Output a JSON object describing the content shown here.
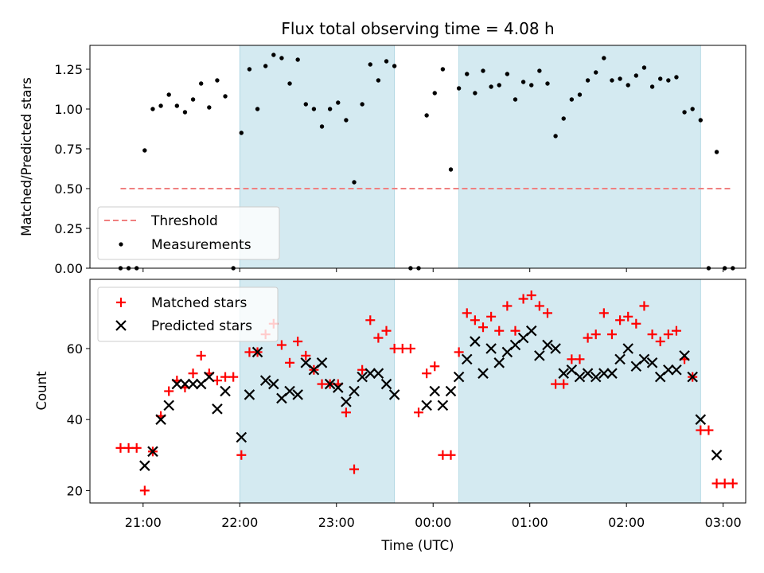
{
  "chart_data": [
    {
      "type": "scatter",
      "title": "Flux total observing time = 4.08 h",
      "ylabel": "Matched/Predicted stars",
      "xlabel": "",
      "xlim": [
        "20:27",
        "03:14"
      ],
      "ylim": [
        0,
        1.4
      ],
      "yticks": [
        "0.00",
        "0.25",
        "0.50",
        "0.75",
        "1.00",
        "1.25"
      ],
      "ytick_values": [
        0,
        0.25,
        0.5,
        0.75,
        1.0,
        1.25
      ],
      "xtick_values": [
        "21:00",
        "22:00",
        "23:00",
        "00:00",
        "01:00",
        "02:00",
        "03:00"
      ],
      "grid": false,
      "legend_placement": "lower-left",
      "shaded_intervals": [
        [
          "22:00",
          "23:36"
        ],
        [
          "00:16",
          "02:46"
        ]
      ],
      "threshold": {
        "name": "Threshold",
        "value": 0.5,
        "x_range": [
          "20:46",
          "03:06"
        ],
        "color": "#f08080"
      },
      "series": [
        {
          "name": "Measurements",
          "color": "#000000",
          "marker": "dot",
          "points": [
            [
              "20:46",
              0.0
            ],
            [
              "20:51",
              0.0
            ],
            [
              "20:56",
              0.0
            ],
            [
              "21:01",
              0.74
            ],
            [
              "21:06",
              1.0
            ],
            [
              "21:11",
              1.02
            ],
            [
              "21:16",
              1.09
            ],
            [
              "21:21",
              1.02
            ],
            [
              "21:26",
              0.98
            ],
            [
              "21:31",
              1.06
            ],
            [
              "21:36",
              1.16
            ],
            [
              "21:41",
              1.01
            ],
            [
              "21:46",
              1.18
            ],
            [
              "21:51",
              1.08
            ],
            [
              "21:56",
              0.0
            ],
            [
              "22:01",
              0.85
            ],
            [
              "22:06",
              1.25
            ],
            [
              "22:11",
              1.0
            ],
            [
              "22:16",
              1.27
            ],
            [
              "22:21",
              1.34
            ],
            [
              "22:26",
              1.32
            ],
            [
              "22:31",
              1.16
            ],
            [
              "22:36",
              1.31
            ],
            [
              "22:41",
              1.03
            ],
            [
              "22:46",
              1.0
            ],
            [
              "22:51",
              0.89
            ],
            [
              "22:56",
              1.0
            ],
            [
              "23:01",
              1.04
            ],
            [
              "23:06",
              0.93
            ],
            [
              "23:11",
              0.54
            ],
            [
              "23:16",
              1.03
            ],
            [
              "23:21",
              1.28
            ],
            [
              "23:26",
              1.18
            ],
            [
              "23:31",
              1.3
            ],
            [
              "23:36",
              1.27
            ],
            [
              "23:46",
              0.0
            ],
            [
              "23:51",
              0.0
            ],
            [
              "23:56",
              0.96
            ],
            [
              "00:01",
              1.1
            ],
            [
              "00:06",
              1.25
            ],
            [
              "00:11",
              0.62
            ],
            [
              "00:16",
              1.13
            ],
            [
              "00:21",
              1.22
            ],
            [
              "00:26",
              1.1
            ],
            [
              "00:31",
              1.24
            ],
            [
              "00:36",
              1.14
            ],
            [
              "00:41",
              1.15
            ],
            [
              "00:46",
              1.22
            ],
            [
              "00:51",
              1.06
            ],
            [
              "00:56",
              1.17
            ],
            [
              "01:01",
              1.15
            ],
            [
              "01:06",
              1.24
            ],
            [
              "01:11",
              1.16
            ],
            [
              "01:16",
              0.83
            ],
            [
              "01:21",
              0.94
            ],
            [
              "01:26",
              1.06
            ],
            [
              "01:31",
              1.09
            ],
            [
              "01:36",
              1.18
            ],
            [
              "01:41",
              1.23
            ],
            [
              "01:46",
              1.32
            ],
            [
              "01:51",
              1.18
            ],
            [
              "01:56",
              1.19
            ],
            [
              "02:01",
              1.15
            ],
            [
              "02:06",
              1.21
            ],
            [
              "02:11",
              1.26
            ],
            [
              "02:16",
              1.14
            ],
            [
              "02:21",
              1.19
            ],
            [
              "02:26",
              1.18
            ],
            [
              "02:31",
              1.2
            ],
            [
              "02:36",
              0.98
            ],
            [
              "02:41",
              1.0
            ],
            [
              "02:46",
              0.93
            ],
            [
              "02:51",
              0.0
            ],
            [
              "02:56",
              0.73
            ],
            [
              "03:01",
              0.0
            ],
            [
              "03:06",
              0.0
            ]
          ]
        }
      ]
    },
    {
      "type": "scatter",
      "title": "",
      "xlabel": "Time (UTC)",
      "ylabel": "Count",
      "xlim": [
        "20:27",
        "03:14"
      ],
      "ylim": [
        16.5,
        79.5
      ],
      "yticks": [
        "20",
        "40",
        "60"
      ],
      "ytick_values": [
        20,
        40,
        60
      ],
      "xticks": [
        "21:00",
        "22:00",
        "23:00",
        "00:00",
        "01:00",
        "02:00",
        "03:00"
      ],
      "xtick_values": [
        "21:00",
        "22:00",
        "23:00",
        "00:00",
        "01:00",
        "02:00",
        "03:00"
      ],
      "grid": false,
      "legend_placement": "upper-left",
      "shaded_intervals": [
        [
          "22:00",
          "23:36"
        ],
        [
          "00:16",
          "02:46"
        ]
      ],
      "series": [
        {
          "name": "Matched stars",
          "color": "#ff0000",
          "marker": "plus",
          "points": [
            [
              "20:46",
              32
            ],
            [
              "20:51",
              32
            ],
            [
              "20:56",
              32
            ],
            [
              "21:01",
              20
            ],
            [
              "21:06",
              31
            ],
            [
              "21:11",
              41
            ],
            [
              "21:16",
              48
            ],
            [
              "21:21",
              51
            ],
            [
              "21:26",
              49
            ],
            [
              "21:31",
              53
            ],
            [
              "21:36",
              58
            ],
            [
              "21:41",
              53
            ],
            [
              "21:46",
              51
            ],
            [
              "21:51",
              52
            ],
            [
              "21:56",
              52
            ],
            [
              "22:01",
              30
            ],
            [
              "22:06",
              59
            ],
            [
              "22:11",
              59
            ],
            [
              "22:16",
              64
            ],
            [
              "22:21",
              67
            ],
            [
              "22:26",
              61
            ],
            [
              "22:31",
              56
            ],
            [
              "22:36",
              62
            ],
            [
              "22:41",
              58
            ],
            [
              "22:46",
              54
            ],
            [
              "22:51",
              50
            ],
            [
              "22:56",
              50
            ],
            [
              "23:01",
              50
            ],
            [
              "23:06",
              42
            ],
            [
              "23:11",
              26
            ],
            [
              "23:16",
              54
            ],
            [
              "23:21",
              68
            ],
            [
              "23:26",
              63
            ],
            [
              "23:31",
              65
            ],
            [
              "23:36",
              60
            ],
            [
              "23:41",
              60
            ],
            [
              "23:46",
              60
            ],
            [
              "23:51",
              42
            ],
            [
              "23:56",
              53
            ],
            [
              "00:01",
              55
            ],
            [
              "00:06",
              30
            ],
            [
              "00:11",
              30
            ],
            [
              "00:16",
              59
            ],
            [
              "00:21",
              70
            ],
            [
              "00:26",
              68
            ],
            [
              "00:31",
              66
            ],
            [
              "00:36",
              69
            ],
            [
              "00:41",
              65
            ],
            [
              "00:46",
              72
            ],
            [
              "00:51",
              65
            ],
            [
              "00:56",
              74
            ],
            [
              "01:01",
              75
            ],
            [
              "01:06",
              72
            ],
            [
              "01:11",
              70
            ],
            [
              "01:16",
              50
            ],
            [
              "01:21",
              50
            ],
            [
              "01:26",
              57
            ],
            [
              "01:31",
              57
            ],
            [
              "01:36",
              63
            ],
            [
              "01:41",
              64
            ],
            [
              "01:46",
              70
            ],
            [
              "01:51",
              64
            ],
            [
              "01:56",
              68
            ],
            [
              "02:01",
              69
            ],
            [
              "02:06",
              67
            ],
            [
              "02:11",
              72
            ],
            [
              "02:16",
              64
            ],
            [
              "02:21",
              62
            ],
            [
              "02:26",
              64
            ],
            [
              "02:31",
              65
            ],
            [
              "02:36",
              57
            ],
            [
              "02:41",
              52
            ],
            [
              "02:46",
              37
            ],
            [
              "02:51",
              37
            ],
            [
              "02:56",
              22
            ],
            [
              "03:01",
              22
            ],
            [
              "03:06",
              22
            ]
          ]
        },
        {
          "name": "Predicted stars",
          "color": "#000000",
          "marker": "x",
          "points": [
            [
              "21:01",
              27
            ],
            [
              "21:06",
              31
            ],
            [
              "21:11",
              40
            ],
            [
              "21:16",
              44
            ],
            [
              "21:21",
              50
            ],
            [
              "21:26",
              50
            ],
            [
              "21:31",
              50
            ],
            [
              "21:36",
              50
            ],
            [
              "21:41",
              52
            ],
            [
              "21:46",
              43
            ],
            [
              "21:51",
              48
            ],
            [
              "22:01",
              35
            ],
            [
              "22:06",
              47
            ],
            [
              "22:11",
              59
            ],
            [
              "22:16",
              51
            ],
            [
              "22:21",
              50
            ],
            [
              "22:26",
              46
            ],
            [
              "22:31",
              48
            ],
            [
              "22:36",
              47
            ],
            [
              "22:41",
              56
            ],
            [
              "22:46",
              54
            ],
            [
              "22:51",
              56
            ],
            [
              "22:56",
              50
            ],
            [
              "23:01",
              49
            ],
            [
              "23:06",
              45
            ],
            [
              "23:11",
              48
            ],
            [
              "23:16",
              52
            ],
            [
              "23:21",
              53
            ],
            [
              "23:26",
              53
            ],
            [
              "23:31",
              50
            ],
            [
              "23:36",
              47
            ],
            [
              "23:56",
              44
            ],
            [
              "00:01",
              48
            ],
            [
              "00:06",
              44
            ],
            [
              "00:11",
              48
            ],
            [
              "00:16",
              52
            ],
            [
              "00:21",
              57
            ],
            [
              "00:26",
              62
            ],
            [
              "00:31",
              53
            ],
            [
              "00:36",
              60
            ],
            [
              "00:41",
              56
            ],
            [
              "00:46",
              59
            ],
            [
              "00:51",
              61
            ],
            [
              "00:56",
              63
            ],
            [
              "01:01",
              65
            ],
            [
              "01:06",
              58
            ],
            [
              "01:11",
              61
            ],
            [
              "01:16",
              60
            ],
            [
              "01:21",
              53
            ],
            [
              "01:26",
              54
            ],
            [
              "01:31",
              52
            ],
            [
              "01:36",
              53
            ],
            [
              "01:41",
              52
            ],
            [
              "01:46",
              53
            ],
            [
              "01:51",
              53
            ],
            [
              "01:56",
              57
            ],
            [
              "02:01",
              60
            ],
            [
              "02:06",
              55
            ],
            [
              "02:11",
              57
            ],
            [
              "02:16",
              56
            ],
            [
              "02:21",
              52
            ],
            [
              "02:26",
              54
            ],
            [
              "02:31",
              54
            ],
            [
              "02:36",
              58
            ],
            [
              "02:41",
              52
            ],
            [
              "02:46",
              40
            ],
            [
              "02:56",
              30
            ]
          ]
        }
      ]
    }
  ],
  "colors": {
    "shade": "#d4eaf1",
    "matched": "#ff0000",
    "predicted": "#000000",
    "threshold": "#f08080"
  }
}
